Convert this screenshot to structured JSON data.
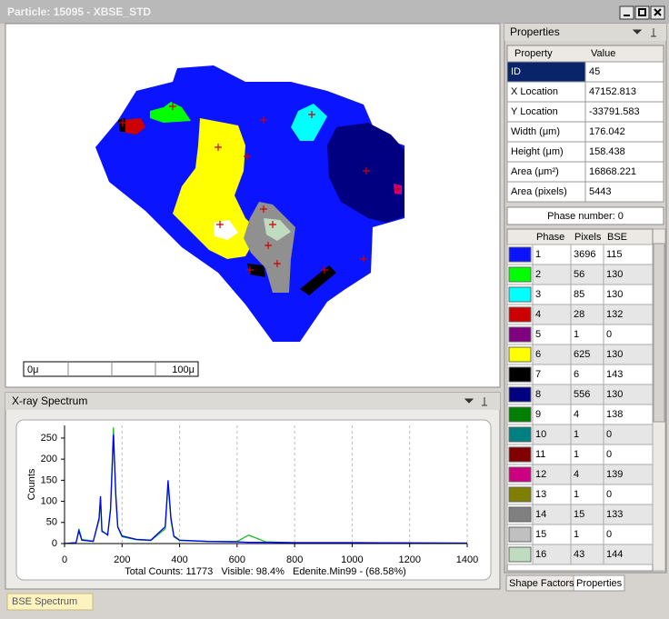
{
  "window": {
    "title": "Particle: 15095 - XBSE_STD"
  },
  "image_panel": {
    "scale_bar": {
      "start": "0μ",
      "end": "100μ"
    }
  },
  "spectrum_panel": {
    "title": "X-ray Spectrum"
  },
  "chart_data": {
    "type": "line",
    "ylabel": "Counts",
    "annotation": "Total Counts: 11773   Visible: 98.4%   Edenite.Min99 - (68.58%)",
    "x": [
      0,
      40,
      50,
      60,
      100,
      120,
      125,
      130,
      150,
      160,
      170,
      178,
      185,
      200,
      250,
      300,
      350,
      360,
      370,
      380,
      400,
      500,
      600,
      640,
      700,
      800,
      1000,
      1400
    ],
    "series": [
      {
        "color": "#0000ff",
        "values": [
          0,
          2,
          30,
          8,
          5,
          60,
          112,
          30,
          20,
          80,
          258,
          120,
          40,
          18,
          10,
          8,
          40,
          150,
          60,
          18,
          8,
          5,
          4,
          3,
          3,
          2,
          2,
          1
        ]
      },
      {
        "color": "#22bb22",
        "values": [
          0,
          2,
          35,
          10,
          6,
          55,
          105,
          28,
          22,
          85,
          275,
          110,
          38,
          16,
          9,
          7,
          35,
          140,
          55,
          16,
          7,
          5,
          5,
          20,
          4,
          2,
          2,
          1
        ]
      }
    ],
    "xlim": [
      0,
      1400
    ],
    "ylim": [
      0,
      280
    ],
    "xticks": [
      0,
      200,
      400,
      600,
      800,
      1000,
      1200,
      1400
    ],
    "yticks": [
      0,
      50,
      100,
      150,
      200,
      250
    ],
    "grid": true
  },
  "properties_panel": {
    "title": "Properties",
    "headers": [
      "Property",
      "Value"
    ],
    "rows": [
      [
        "ID",
        "45"
      ],
      [
        "X Location",
        "47152.813"
      ],
      [
        "Y Location",
        "-33791.583"
      ],
      [
        "Width (μm)",
        "176.042"
      ],
      [
        "Height (μm)",
        "158.438"
      ],
      [
        "Area (μm²)",
        "16868.221"
      ],
      [
        "Area (pixels)",
        "5443"
      ]
    ],
    "phase_number": "Phase number: 0",
    "phase_headers": [
      "Phase",
      "Pixels",
      "BSE"
    ],
    "phases": [
      {
        "color": "#0a14ff",
        "phase": 1,
        "pixels": 3696,
        "bse": 115
      },
      {
        "color": "#00ff00",
        "phase": 2,
        "pixels": 56,
        "bse": 130
      },
      {
        "color": "#00ffff",
        "phase": 3,
        "pixels": 85,
        "bse": 130
      },
      {
        "color": "#cc0000",
        "phase": 4,
        "pixels": 28,
        "bse": 132
      },
      {
        "color": "#800080",
        "phase": 5,
        "pixels": 1,
        "bse": 0
      },
      {
        "color": "#ffff00",
        "phase": 6,
        "pixels": 625,
        "bse": 130
      },
      {
        "color": "#000000",
        "phase": 7,
        "pixels": 6,
        "bse": 143
      },
      {
        "color": "#000080",
        "phase": 8,
        "pixels": 556,
        "bse": 130
      },
      {
        "color": "#008000",
        "phase": 9,
        "pixels": 4,
        "bse": 138
      },
      {
        "color": "#008080",
        "phase": 10,
        "pixels": 1,
        "bse": 0
      },
      {
        "color": "#800000",
        "phase": 11,
        "pixels": 1,
        "bse": 0
      },
      {
        "color": "#cc0080",
        "phase": 12,
        "pixels": 4,
        "bse": 139
      },
      {
        "color": "#808000",
        "phase": 13,
        "pixels": 1,
        "bse": 0
      },
      {
        "color": "#808080",
        "phase": 14,
        "pixels": 15,
        "bse": 133
      },
      {
        "color": "#c0c0c0",
        "phase": 15,
        "pixels": 1,
        "bse": 0
      },
      {
        "color": "#c0dcc0",
        "phase": 16,
        "pixels": 43,
        "bse": 144
      }
    ],
    "tabs": [
      "Shape Factors",
      "Properties"
    ]
  },
  "status_bar": {
    "tab": "BSE Spectrum"
  }
}
